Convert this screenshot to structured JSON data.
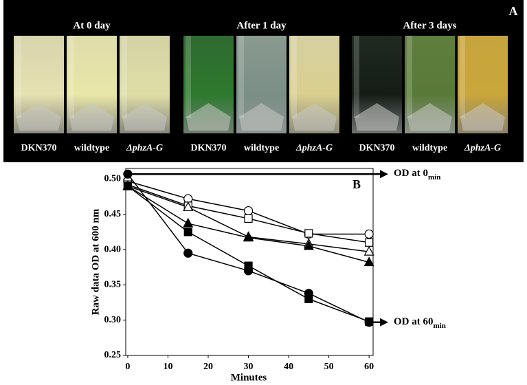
{
  "panel_a": {
    "label": "A",
    "groups": [
      {
        "title": "At 0 day",
        "tubes": [
          "DKN370",
          "wildtype",
          "ΔphzA-G"
        ]
      },
      {
        "title": "After 1 day",
        "tubes": [
          "DKN370",
          "wildtype",
          "ΔphzA-G"
        ]
      },
      {
        "title": "After 3 days",
        "tubes": [
          "DKN370",
          "wildtype",
          "ΔphzA-G"
        ]
      }
    ]
  },
  "chart_data": {
    "type": "line",
    "panel_label": "B",
    "xlabel": "Minutes",
    "ylabel": "Raw data OD at 600 nm",
    "x": [
      0,
      15,
      30,
      45,
      60
    ],
    "series": [
      {
        "marker": "circle",
        "filled": false,
        "color": "#000000",
        "values": [
          0.497,
          0.472,
          0.455,
          0.422,
          0.422
        ]
      },
      {
        "marker": "square",
        "filled": false,
        "color": "#000000",
        "values": [
          0.492,
          0.462,
          0.444,
          0.423,
          0.41
        ]
      },
      {
        "marker": "triangle",
        "filled": false,
        "color": "#000000",
        "values": [
          0.49,
          0.46,
          0.418,
          0.408,
          0.397
        ]
      },
      {
        "marker": "triangle",
        "filled": true,
        "color": "#000000",
        "values": [
          0.49,
          0.437,
          0.417,
          0.405,
          0.382
        ]
      },
      {
        "marker": "square",
        "filled": true,
        "color": "#000000",
        "values": [
          0.49,
          0.425,
          0.377,
          0.33,
          0.298
        ]
      },
      {
        "marker": "circle",
        "filled": true,
        "color": "#000000",
        "values": [
          0.507,
          0.395,
          0.37,
          0.338,
          0.297
        ]
      }
    ],
    "xlim": [
      -0.5,
      61
    ],
    "ylim": [
      0.25,
      0.515
    ],
    "xticks": [
      0,
      10,
      20,
      30,
      40,
      50,
      60
    ],
    "yticks": [
      0.25,
      {
        "value": 0.3,
        "label": "0.30"
      },
      0.35,
      {
        "value": 0.4,
        "label": "0.40"
      },
      0.45,
      {
        "value": 0.5,
        "label": "0.50"
      }
    ],
    "annotations": [
      {
        "text": "OD at 0",
        "sub": "min"
      },
      {
        "text": "OD at 60",
        "sub": "min"
      }
    ]
  }
}
